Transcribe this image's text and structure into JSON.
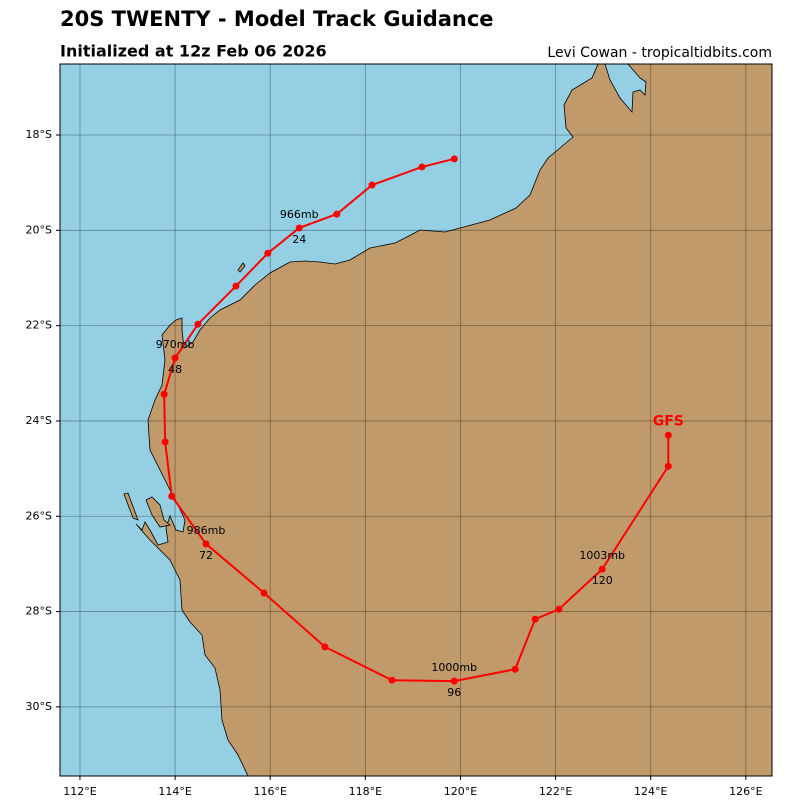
{
  "chart_data": {
    "type": "track",
    "title": "20S TWENTY - Model Track Guidance",
    "subtitle": "Initialized at 12z Feb 06 2026",
    "credit": "Levi Cowan - tropicaltidbits.com",
    "xlim": [
      111.58,
      126.55
    ],
    "ylim": [
      -31.45,
      -16.51
    ],
    "xticks": [
      {
        "value": 112,
        "label": "112°E"
      },
      {
        "value": 114,
        "label": "114°E"
      },
      {
        "value": 116,
        "label": "116°E"
      },
      {
        "value": 118,
        "label": "118°E"
      },
      {
        "value": 120,
        "label": "120°E"
      },
      {
        "value": 122,
        "label": "122°E"
      },
      {
        "value": 124,
        "label": "124°E"
      },
      {
        "value": 126,
        "label": "126°E"
      }
    ],
    "yticks": [
      {
        "value": -18,
        "label": "18°S"
      },
      {
        "value": -20,
        "label": "20°S"
      },
      {
        "value": -22,
        "label": "22°S"
      },
      {
        "value": -24,
        "label": "24°S"
      },
      {
        "value": -26,
        "label": "26°S"
      },
      {
        "value": -28,
        "label": "28°S"
      },
      {
        "value": -30,
        "label": "30°S"
      }
    ],
    "grid": true,
    "series": [
      {
        "name": "GFS",
        "color": "#ff0000",
        "x": [
          124.37,
          124.37,
          122.98,
          122.07,
          121.57,
          121.15,
          119.87,
          118.56,
          117.15,
          115.87,
          114.65,
          113.93,
          113.79,
          113.77,
          114.0,
          114.48,
          115.28,
          115.95,
          116.61,
          117.4,
          118.14,
          119.19,
          119.87
        ],
        "values": [
          -24.3,
          -24.95,
          -27.11,
          -27.95,
          -28.16,
          -29.21,
          -29.46,
          -29.44,
          -28.74,
          -27.61,
          -26.58,
          -25.58,
          -24.44,
          -23.44,
          -22.68,
          -21.97,
          -21.17,
          -20.48,
          -19.95,
          -19.66,
          -19.05,
          -18.67,
          -18.5
        ],
        "hours": [
          null,
          null,
          120,
          null,
          null,
          null,
          96,
          null,
          null,
          null,
          72,
          null,
          null,
          null,
          48,
          null,
          null,
          null,
          24,
          null,
          null,
          null,
          null
        ],
        "pressure_labels": [
          null,
          null,
          "1003mb",
          null,
          null,
          null,
          "1000mb",
          null,
          null,
          null,
          "986mb",
          null,
          null,
          null,
          "970mb",
          null,
          null,
          null,
          "966mb",
          null,
          null,
          null,
          null
        ]
      }
    ]
  }
}
